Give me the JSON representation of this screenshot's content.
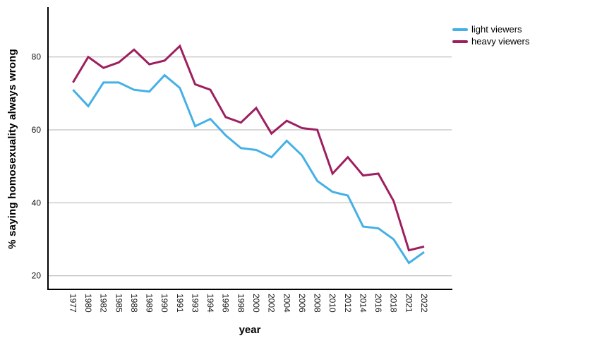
{
  "chart_data": {
    "type": "line",
    "title": "",
    "xlabel": "year",
    "ylabel": "% saying homosexuality always wrong",
    "x": [
      "1977",
      "1980",
      "1982",
      "1985",
      "1988",
      "1989",
      "1990",
      "1991",
      "1993",
      "1994",
      "1996",
      "1998",
      "2000",
      "2002",
      "2004",
      "2006",
      "2008",
      "2010",
      "2012",
      "2014",
      "2016",
      "2018",
      "2021",
      "2022"
    ],
    "series": [
      {
        "name": "light viewers",
        "color": "#45b0e6",
        "values": [
          71,
          66.5,
          73,
          73,
          71,
          70.5,
          75,
          71.5,
          61,
          63,
          58.5,
          55,
          54.5,
          52.5,
          57,
          53,
          46,
          43,
          42,
          33.5,
          33,
          30,
          23.5,
          26.5
        ]
      },
      {
        "name": "heavy viewers",
        "color": "#9e1f5f",
        "values": [
          73,
          80,
          77,
          78.5,
          82,
          78,
          79,
          83,
          72.5,
          71,
          63.5,
          62,
          66,
          59,
          62.5,
          60.5,
          60,
          48,
          52.5,
          47.5,
          48,
          40.5,
          27,
          28
        ]
      }
    ],
    "yticks": [
      20,
      40,
      60,
      80
    ],
    "ylim": [
      16,
      94
    ],
    "grid": "horizontal-only",
    "legend_position": "top-right"
  },
  "colors": {
    "background": "#ffffff",
    "gridline": "#b3b3b3",
    "axis": "#000000",
    "light_viewers": "#45b0e6",
    "heavy_viewers": "#9e1f5f"
  }
}
